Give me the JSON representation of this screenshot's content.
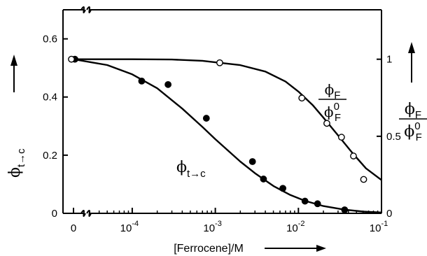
{
  "chart_data": {
    "type": "scatter",
    "xlabel": "[Ferrocene]/M",
    "x_scale": "log",
    "x_break": true,
    "xlim": [
      3.01e-05,
      0.1
    ],
    "x_ticks": [
      {
        "value": 0,
        "label": "0",
        "zero": true
      },
      {
        "value": 0.0001,
        "base": "10",
        "exp": "-4"
      },
      {
        "value": 0.001,
        "base": "10",
        "exp": "-3"
      },
      {
        "value": 0.01,
        "base": "10",
        "exp": "-2"
      },
      {
        "value": 0.1,
        "base": "10",
        "exp": "-1"
      }
    ],
    "left_axis": {
      "label": {
        "main": "ϕ",
        "sub": "t→c"
      },
      "ylim": [
        0,
        0.7
      ],
      "ticks": [
        {
          "value": 0,
          "label": "0"
        },
        {
          "value": 0.2,
          "label": "0.2"
        },
        {
          "value": 0.4,
          "label": "0.4"
        },
        {
          "value": 0.6,
          "label": "0.6"
        }
      ]
    },
    "right_axis": {
      "label": {
        "num": "ϕ",
        "num_sub": "F",
        "den": "ϕ",
        "den_sup": "0",
        "den_sub": "F"
      },
      "ylim": [
        0,
        1.3208
      ],
      "ticks": [
        {
          "value": 0,
          "label": "0"
        },
        {
          "value": 0.5,
          "label": "0.5"
        },
        {
          "value": 1,
          "label": "1"
        }
      ]
    },
    "series": [
      {
        "label": {
          "main": "ϕ",
          "sub": "t→c"
        },
        "axis": "left",
        "marker": "filled-circle",
        "points": [
          {
            "x": 0,
            "y": 0.53
          },
          {
            "x": 0.00013,
            "y": 0.455
          },
          {
            "x": 0.00027,
            "y": 0.443
          },
          {
            "x": 0.00078,
            "y": 0.327
          },
          {
            "x": 0.0028,
            "y": 0.178
          },
          {
            "x": 0.0038,
            "y": 0.118
          },
          {
            "x": 0.0065,
            "y": 0.086
          },
          {
            "x": 0.012,
            "y": 0.042
          },
          {
            "x": 0.017,
            "y": 0.033
          },
          {
            "x": 0.036,
            "y": 0.012
          }
        ],
        "fit_curve": [
          {
            "x": 0,
            "y": 0.53
          },
          {
            "x": 5e-05,
            "y": 0.51
          },
          {
            "x": 0.0001,
            "y": 0.478
          },
          {
            "x": 0.0002,
            "y": 0.43
          },
          {
            "x": 0.0004,
            "y": 0.36
          },
          {
            "x": 0.0007,
            "y": 0.297
          },
          {
            "x": 0.001,
            "y": 0.255
          },
          {
            "x": 0.002,
            "y": 0.178
          },
          {
            "x": 0.003,
            "y": 0.138
          },
          {
            "x": 0.005,
            "y": 0.094
          },
          {
            "x": 0.008,
            "y": 0.063
          },
          {
            "x": 0.012,
            "y": 0.043
          },
          {
            "x": 0.02,
            "y": 0.025
          },
          {
            "x": 0.035,
            "y": 0.013
          },
          {
            "x": 0.06,
            "y": 0.006
          },
          {
            "x": 0.1,
            "y": 0.003
          }
        ]
      },
      {
        "label": {
          "num": "ϕ",
          "num_sub": "F",
          "den": "ϕ",
          "den_sup": "0",
          "den_sub": "F"
        },
        "axis": "right",
        "marker": "open-circle",
        "points": [
          {
            "x": 0,
            "y": 1.0
          },
          {
            "x": 0.00113,
            "y": 0.977
          },
          {
            "x": 0.011,
            "y": 0.748
          },
          {
            "x": 0.022,
            "y": 0.584
          },
          {
            "x": 0.033,
            "y": 0.494
          },
          {
            "x": 0.046,
            "y": 0.372
          },
          {
            "x": 0.061,
            "y": 0.22
          }
        ],
        "fit_curve": [
          {
            "x": 0,
            "y": 1.0
          },
          {
            "x": 0.0001,
            "y": 1.0
          },
          {
            "x": 0.0003,
            "y": 0.998
          },
          {
            "x": 0.0007,
            "y": 0.99
          },
          {
            "x": 0.001,
            "y": 0.98
          },
          {
            "x": 0.002,
            "y": 0.962
          },
          {
            "x": 0.004,
            "y": 0.92
          },
          {
            "x": 0.007,
            "y": 0.855
          },
          {
            "x": 0.01,
            "y": 0.79
          },
          {
            "x": 0.015,
            "y": 0.7
          },
          {
            "x": 0.02,
            "y": 0.621
          },
          {
            "x": 0.03,
            "y": 0.506
          },
          {
            "x": 0.045,
            "y": 0.39
          },
          {
            "x": 0.065,
            "y": 0.292
          },
          {
            "x": 0.1,
            "y": 0.216
          }
        ]
      }
    ]
  }
}
